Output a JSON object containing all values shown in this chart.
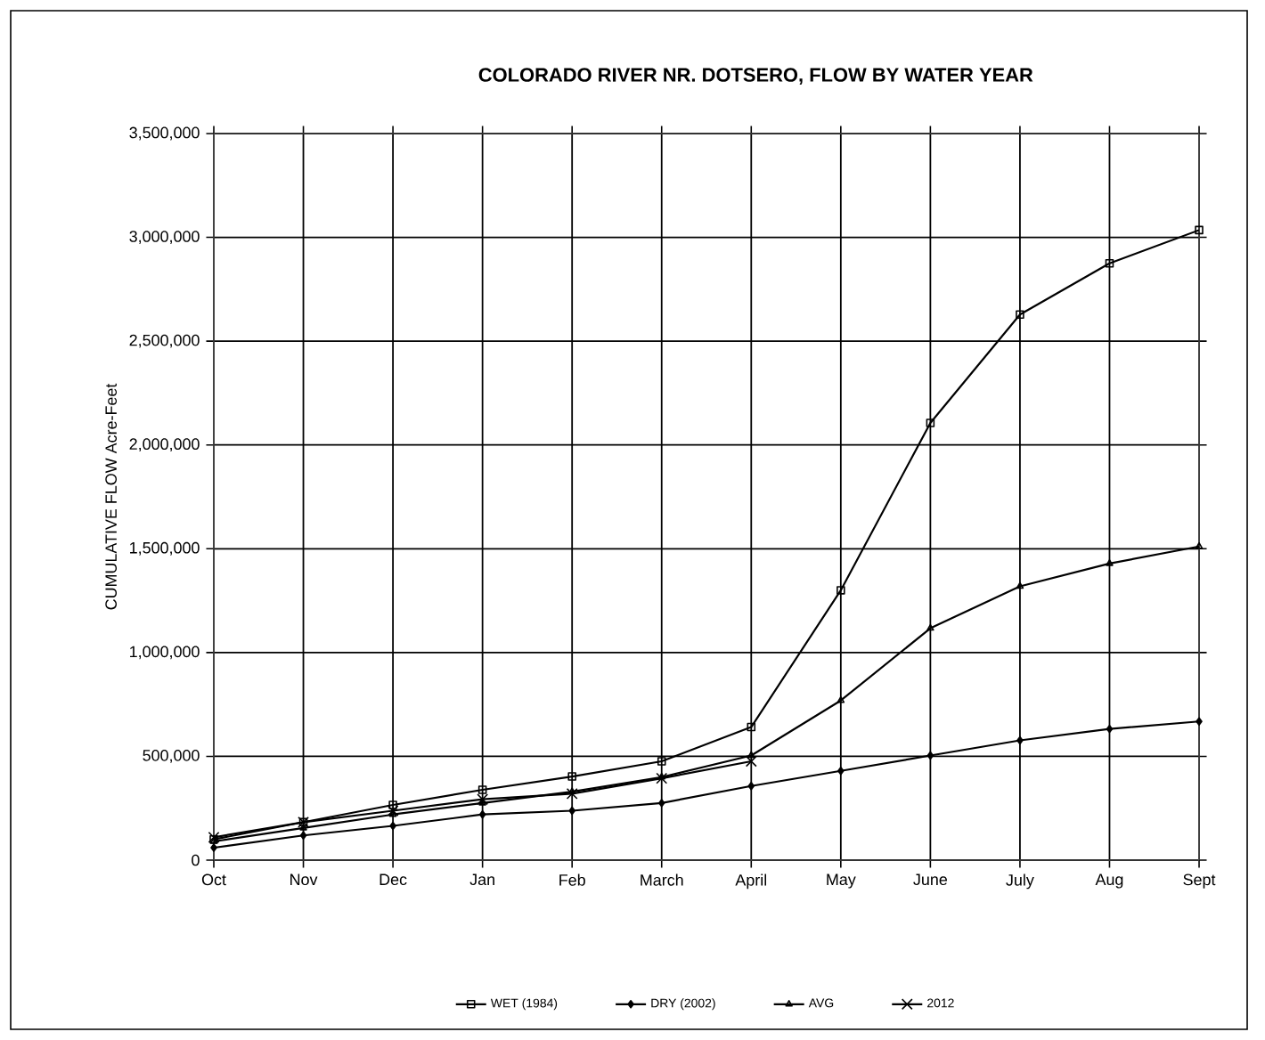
{
  "chart_data": {
    "type": "line",
    "title": "COLORADO RIVER NR. DOTSERO, FLOW BY WATER YEAR",
    "ylabel": "CUMULATIVE FLOW Acre-Feet",
    "categories": [
      "Oct",
      "Nov",
      "Dec",
      "Jan",
      "Feb",
      "March",
      "April",
      "May",
      "June",
      "July",
      "Aug",
      "Sept"
    ],
    "series": [
      {
        "name": "WET (1984)",
        "color": "#000000",
        "marker": "square",
        "values": [
          100000,
          183000,
          266000,
          339000,
          403000,
          476000,
          641000,
          1300000,
          2106000,
          2628000,
          2875000,
          3035000
        ]
      },
      {
        "name": "DRY (2002)",
        "color": "#000000",
        "marker": "diamond",
        "values": [
          60000,
          119000,
          165000,
          220000,
          238000,
          275000,
          357000,
          430000,
          504000,
          577000,
          632000,
          668000
        ]
      },
      {
        "name": "AVG",
        "color": "#000000",
        "marker": "triangle",
        "values": [
          90000,
          155000,
          220000,
          275000,
          330000,
          400000,
          504000,
          769000,
          1117000,
          1319000,
          1429000,
          1511000
        ]
      },
      {
        "name": "2012",
        "color": "#000000",
        "marker": "cross",
        "values": [
          110000,
          183000,
          238000,
          293000,
          320000,
          394000,
          476000,
          null,
          null,
          null,
          null,
          null
        ]
      }
    ],
    "ylim": [
      0,
      3500000
    ],
    "yticks": [
      0,
      {
        "value": 500000,
        "label": "500,000"
      },
      {
        "value": 1000000,
        "label": "1,000,000"
      },
      {
        "value": 1500000,
        "label": "1,500,000"
      },
      {
        "value": 2000000,
        "label": "2,000,000"
      },
      {
        "value": 2500000,
        "label": "2,500,000"
      },
      {
        "value": 3000000,
        "label": "3,000,000"
      },
      {
        "value": 3500000,
        "label": "3,500,000"
      }
    ],
    "grid": true,
    "legend": "bottom",
    "line_style": "solid"
  }
}
